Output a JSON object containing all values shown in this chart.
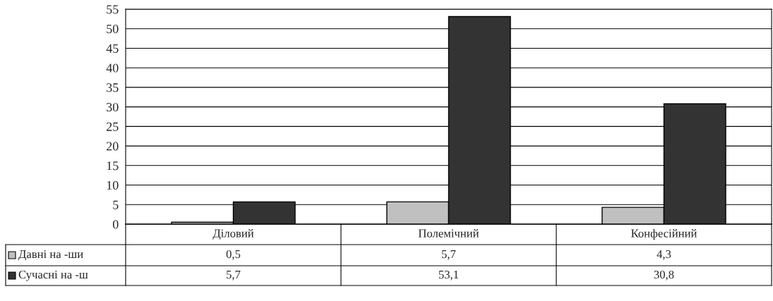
{
  "chart_data": {
    "type": "bar",
    "categories": [
      "Діловий",
      "Полемічний",
      "Конфесійний"
    ],
    "series": [
      {
        "name": "Давні на -ши",
        "color": "#c0c0c0",
        "values": [
          0.5,
          5.7,
          4.3
        ],
        "value_labels": [
          "0,5",
          "5,7",
          "4,3"
        ]
      },
      {
        "name": "Сучасні на -ш",
        "color": "#333333",
        "values": [
          5.7,
          53.1,
          30.8
        ],
        "value_labels": [
          "5,7",
          "53,1",
          "30,8"
        ]
      }
    ],
    "ylim": [
      0,
      55
    ],
    "yticks": [
      0,
      5,
      10,
      15,
      20,
      25,
      30,
      35,
      40,
      45,
      50,
      55
    ],
    "grid": "y",
    "legend": "bottom left"
  }
}
